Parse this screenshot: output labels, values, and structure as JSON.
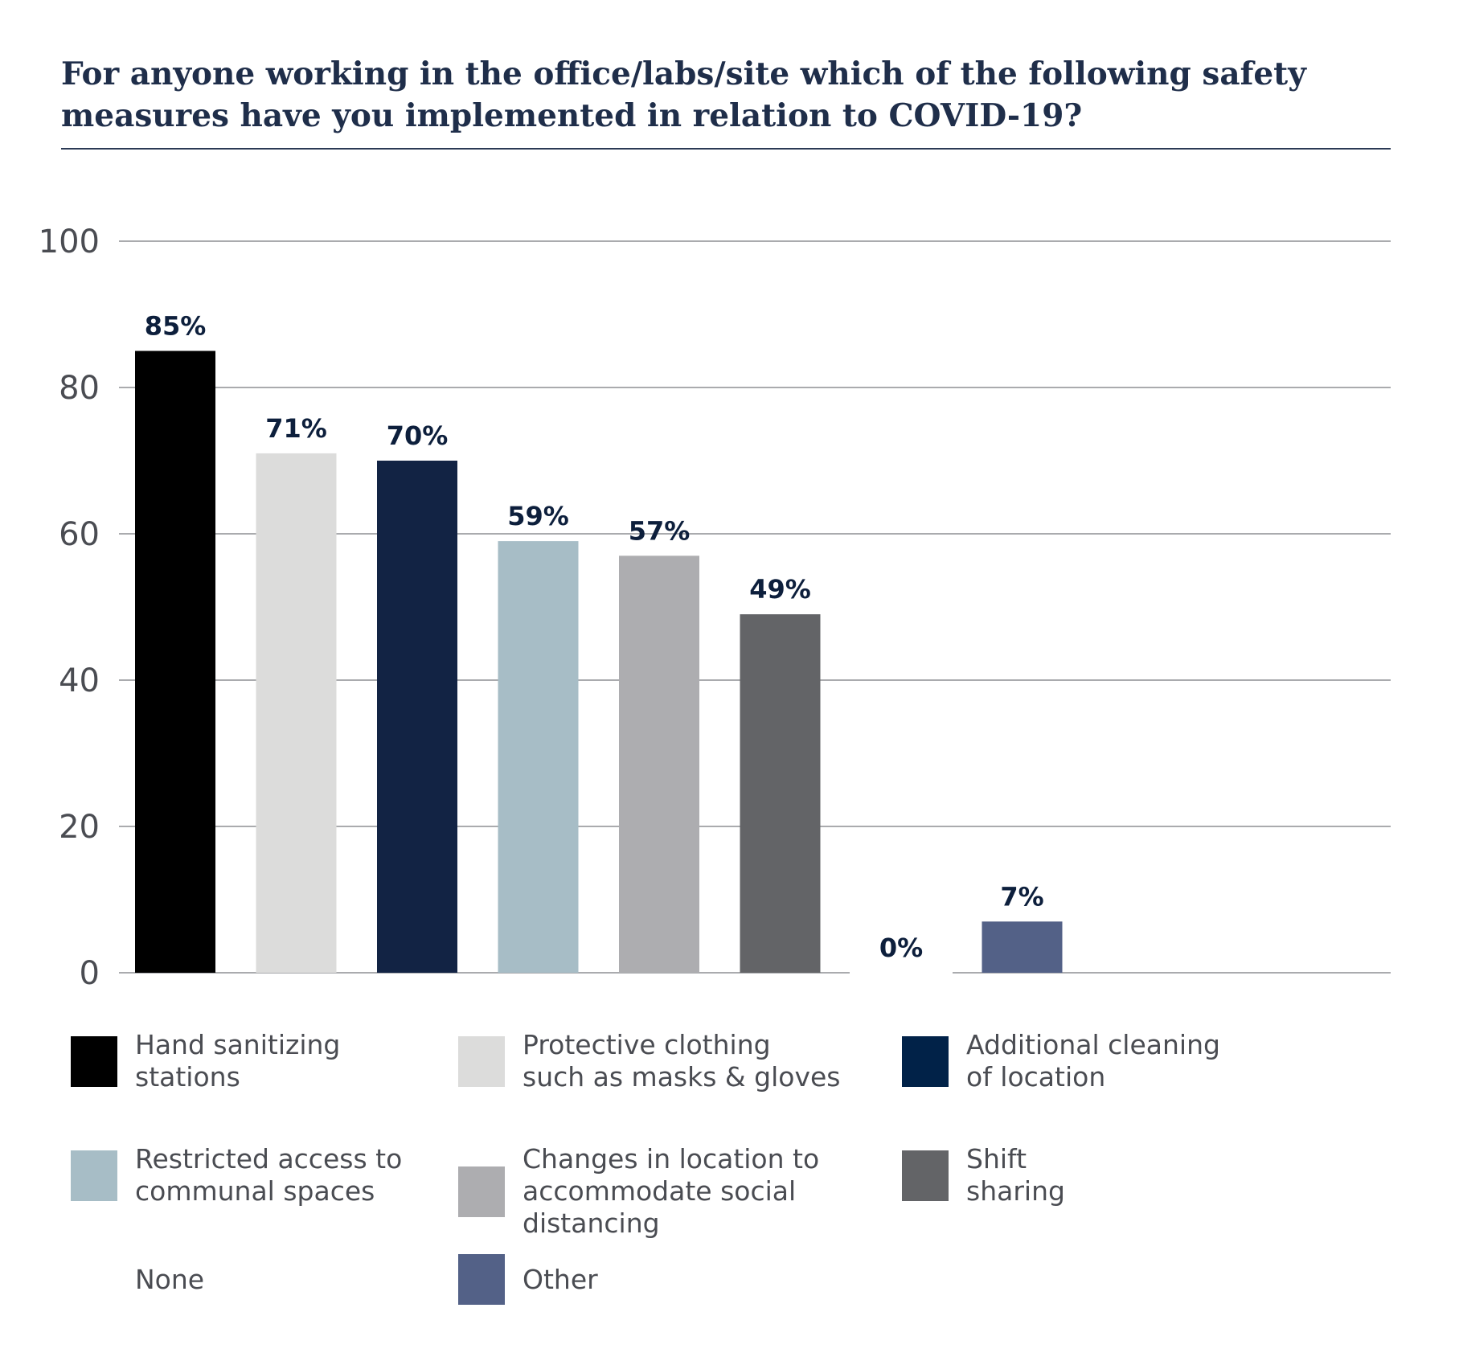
{
  "chart_data": {
    "type": "bar",
    "title": "For anyone working in the office/labs/site which of the following safety measures have you implemented in relation to COVID-19?",
    "xlabel": "",
    "ylabel": "",
    "ylim": [
      0,
      100
    ],
    "yticks": [
      0,
      20,
      40,
      60,
      80,
      100
    ],
    "grid": true,
    "legend_position": "bottom",
    "categories": [
      "Hand sanitizing stations",
      "Protective clothing such as masks & gloves",
      "Additional cleaning of location",
      "Restricted access to communal spaces",
      "Changes in location to accommodate social distancing",
      "Shift sharing",
      "None",
      "Other"
    ],
    "values": [
      85,
      71,
      70,
      59,
      57,
      49,
      0,
      7
    ],
    "data_labels": [
      "85%",
      "71%",
      "70%",
      "59%",
      "57%",
      "49%",
      "0%",
      "7%"
    ],
    "colors": [
      "#000000",
      "#dcdcdb",
      "#122344",
      "#a7bdc6",
      "#adadb0",
      "#636467",
      "#ffffff",
      "#536187"
    ],
    "legend": [
      {
        "label_lines": [
          "Hand sanitizing",
          "stations"
        ],
        "color": "#000000"
      },
      {
        "label_lines": [
          "Protective clothing",
          "such as masks & gloves"
        ],
        "color": "#dcdcdb"
      },
      {
        "label_lines": [
          "Additional cleaning",
          "of location"
        ],
        "color": "#012248"
      },
      {
        "label_lines": [
          "Restricted access to",
          "communal spaces"
        ],
        "color": "#a7bdc6"
      },
      {
        "label_lines": [
          "Changes in location to",
          "accommodate social",
          "distancing"
        ],
        "color": "#adadb0"
      },
      {
        "label_lines": [
          "Shift",
          "sharing"
        ],
        "color": "#636467"
      },
      {
        "label_lines": [
          "None"
        ],
        "color": "#ffffff"
      },
      {
        "label_lines": [
          "Other"
        ],
        "color": "#536187"
      }
    ],
    "text_colors": {
      "data_label": "#0d1f3c",
      "tick_label": "#4a4c52"
    }
  }
}
